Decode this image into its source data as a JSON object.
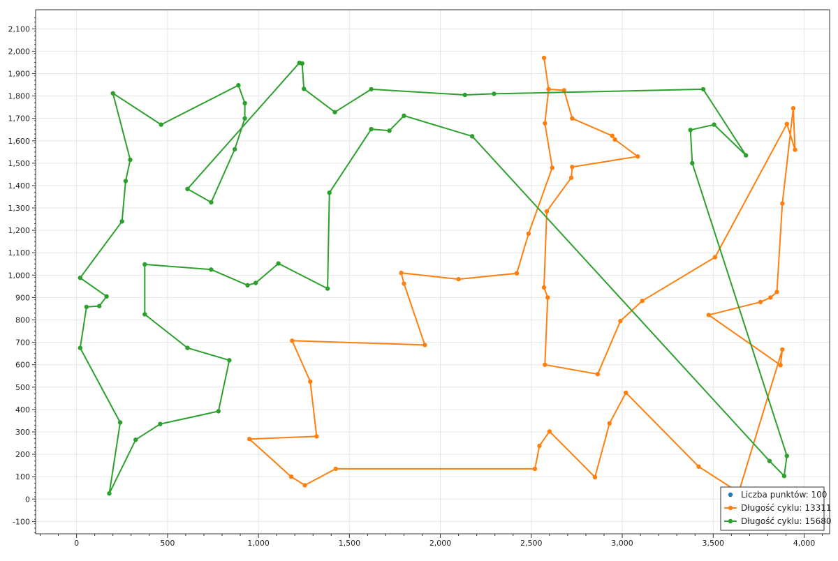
{
  "chart_data": {
    "type": "scatter",
    "title": "",
    "xlabel": "",
    "ylabel": "",
    "xlim": [
      -225,
      4140
    ],
    "ylim": [
      -155,
      2185
    ],
    "x_ticks": [
      0,
      500,
      1000,
      1500,
      2000,
      2500,
      3000,
      3500,
      4000
    ],
    "y_ticks": [
      -100,
      0,
      100,
      200,
      300,
      400,
      500,
      600,
      700,
      800,
      900,
      1000,
      1100,
      1200,
      1300,
      1400,
      1500,
      1600,
      1700,
      1800,
      1900,
      2000,
      2100
    ],
    "x_tick_labels": [
      "0",
      "500",
      "1,000",
      "1,500",
      "2,000",
      "2,500",
      "3,000",
      "3,500",
      "4,000"
    ],
    "y_tick_labels": [
      "-100",
      "0",
      "100",
      "200",
      "300",
      "400",
      "500",
      "600",
      "700",
      "800",
      "900",
      "1,000",
      "1,100",
      "1,200",
      "1,300",
      "1,400",
      "1,500",
      "1,600",
      "1,700",
      "1,800",
      "1,900",
      "2,000",
      "2,100"
    ],
    "grid": true,
    "legend_position": "bottom-right",
    "series": [
      {
        "name": "Liczba punktów: 100",
        "color": "#1f77b4",
        "kind": "points",
        "points": []
      },
      {
        "name": "Długość cyklu: 13311",
        "color": "#ff7f0e",
        "kind": "cycle",
        "points": [
          [
            2570,
            1970
          ],
          [
            2595,
            1830
          ],
          [
            2680,
            1825
          ],
          [
            2725,
            1700
          ],
          [
            2945,
            1622
          ],
          [
            2960,
            1605
          ],
          [
            3085,
            1530
          ],
          [
            2725,
            1483
          ],
          [
            2720,
            1435
          ],
          [
            2585,
            1285
          ],
          [
            2570,
            945
          ],
          [
            2590,
            900
          ],
          [
            2575,
            600
          ],
          [
            2865,
            558
          ],
          [
            2990,
            795
          ],
          [
            3110,
            885
          ],
          [
            3510,
            1080
          ],
          [
            3905,
            1675
          ],
          [
            3950,
            1560
          ],
          [
            3940,
            1745
          ],
          [
            3880,
            1320
          ],
          [
            3850,
            925
          ],
          [
            3815,
            900
          ],
          [
            3760,
            880
          ],
          [
            3475,
            822
          ],
          [
            3870,
            598
          ],
          [
            3880,
            668
          ],
          [
            3640,
            30
          ],
          [
            3420,
            145
          ],
          [
            3020,
            475
          ],
          [
            2930,
            338
          ],
          [
            2850,
            98
          ],
          [
            2600,
            302
          ],
          [
            2545,
            238
          ],
          [
            2520,
            135
          ],
          [
            1425,
            135
          ],
          [
            1255,
            62
          ],
          [
            1180,
            100
          ],
          [
            950,
            268
          ],
          [
            1320,
            280
          ],
          [
            1285,
            525
          ],
          [
            1185,
            707
          ],
          [
            1915,
            688
          ],
          [
            1800,
            962
          ],
          [
            1785,
            1010
          ],
          [
            2100,
            982
          ],
          [
            2420,
            1008
          ],
          [
            2485,
            1185
          ],
          [
            2615,
            1480
          ],
          [
            2575,
            1678
          ],
          [
            2595,
            1830
          ]
        ]
      },
      {
        "name": "Długość cyklu: 15680",
        "color": "#2ca02c",
        "kind": "cycle",
        "points": [
          [
            1240,
            1945
          ],
          [
            1250,
            1832
          ],
          [
            1420,
            1728
          ],
          [
            1620,
            1830
          ],
          [
            2135,
            1805
          ],
          [
            2295,
            1810
          ],
          [
            3445,
            1830
          ],
          [
            3680,
            1535
          ],
          [
            3505,
            1672
          ],
          [
            3375,
            1648
          ],
          [
            3385,
            1500
          ],
          [
            3905,
            193
          ],
          [
            3890,
            103
          ],
          [
            3810,
            170
          ],
          [
            2175,
            1620
          ],
          [
            1800,
            1712
          ],
          [
            1720,
            1645
          ],
          [
            1620,
            1652
          ],
          [
            1390,
            1368
          ],
          [
            1380,
            940
          ],
          [
            1110,
            1052
          ],
          [
            985,
            965
          ],
          [
            940,
            955
          ],
          [
            740,
            1025
          ],
          [
            375,
            1048
          ],
          [
            375,
            825
          ],
          [
            610,
            675
          ],
          [
            840,
            620
          ],
          [
            780,
            392
          ],
          [
            460,
            335
          ],
          [
            325,
            265
          ],
          [
            180,
            25
          ],
          [
            240,
            342
          ],
          [
            20,
            675
          ],
          [
            55,
            858
          ],
          [
            125,
            862
          ],
          [
            165,
            905
          ],
          [
            20,
            988
          ],
          [
            250,
            1240
          ],
          [
            270,
            1420
          ],
          [
            295,
            1515
          ],
          [
            200,
            1812
          ],
          [
            465,
            1672
          ],
          [
            890,
            1848
          ],
          [
            925,
            1768
          ],
          [
            925,
            1700
          ],
          [
            870,
            1562
          ],
          [
            740,
            1325
          ],
          [
            610,
            1385
          ],
          [
            1225,
            1948
          ],
          [
            1240,
            1945
          ]
        ]
      }
    ]
  }
}
